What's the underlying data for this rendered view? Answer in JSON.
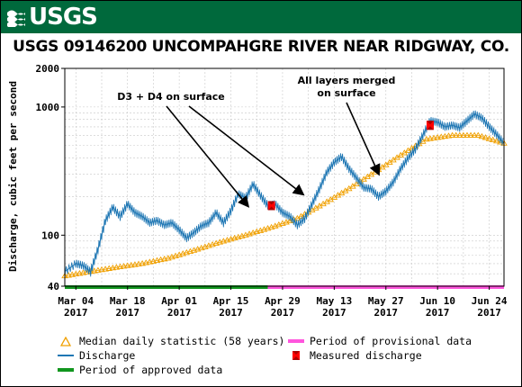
{
  "header": {
    "logo_text": "USGS",
    "brand_color": "#00693c"
  },
  "chart_data": {
    "type": "line",
    "title": "USGS 09146200 UNCOMPAHGRE RIVER NEAR RIDGWAY, CO.",
    "ylabel": "Discharge, cubic feet per second",
    "xlabel": "",
    "yscale": "log",
    "ylim": [
      40,
      2000
    ],
    "xlim": [
      "2017-03-01",
      "2017-06-28"
    ],
    "y_ticks": [
      40,
      100,
      1000,
      2000
    ],
    "x_ticks": [
      {
        "date": "2017-03-04",
        "label1": "Mar 04",
        "label2": "2017"
      },
      {
        "date": "2017-03-18",
        "label1": "Mar 18",
        "label2": "2017"
      },
      {
        "date": "2017-04-01",
        "label1": "Apr 01",
        "label2": "2017"
      },
      {
        "date": "2017-04-15",
        "label1": "Apr 15",
        "label2": "2017"
      },
      {
        "date": "2017-04-29",
        "label1": "Apr 29",
        "label2": "2017"
      },
      {
        "date": "2017-05-13",
        "label1": "May 13",
        "label2": "2017"
      },
      {
        "date": "2017-05-27",
        "label1": "May 27",
        "label2": "2017"
      },
      {
        "date": "2017-06-10",
        "label1": "Jun 10",
        "label2": "2017"
      },
      {
        "date": "2017-06-24",
        "label1": "Jun 24",
        "label2": "2017"
      }
    ],
    "grid": true,
    "series": [
      {
        "name": "Discharge",
        "color": "#1f77b4",
        "x": [
          "2017-03-01",
          "2017-03-04",
          "2017-03-06",
          "2017-03-08",
          "2017-03-10",
          "2017-03-12",
          "2017-03-14",
          "2017-03-16",
          "2017-03-18",
          "2017-03-20",
          "2017-03-22",
          "2017-03-24",
          "2017-03-26",
          "2017-03-28",
          "2017-03-30",
          "2017-04-01",
          "2017-04-03",
          "2017-04-05",
          "2017-04-07",
          "2017-04-09",
          "2017-04-11",
          "2017-04-13",
          "2017-04-15",
          "2017-04-17",
          "2017-04-19",
          "2017-04-21",
          "2017-04-23",
          "2017-04-25",
          "2017-04-27",
          "2017-04-29",
          "2017-05-01",
          "2017-05-03",
          "2017-05-05",
          "2017-05-07",
          "2017-05-09",
          "2017-05-11",
          "2017-05-13",
          "2017-05-15",
          "2017-05-17",
          "2017-05-19",
          "2017-05-21",
          "2017-05-23",
          "2017-05-25",
          "2017-05-27",
          "2017-05-29",
          "2017-05-31",
          "2017-06-02",
          "2017-06-04",
          "2017-06-06",
          "2017-06-08",
          "2017-06-10",
          "2017-06-12",
          "2017-06-14",
          "2017-06-16",
          "2017-06-18",
          "2017-06-20",
          "2017-06-22",
          "2017-06-24",
          "2017-06-26",
          "2017-06-28"
        ],
        "values": [
          52,
          60,
          58,
          52,
          78,
          130,
          165,
          140,
          175,
          150,
          140,
          125,
          130,
          120,
          125,
          110,
          95,
          105,
          118,
          125,
          150,
          125,
          155,
          210,
          195,
          250,
          205,
          170,
          175,
          150,
          140,
          120,
          135,
          175,
          230,
          310,
          370,
          410,
          330,
          280,
          235,
          230,
          200,
          220,
          260,
          330,
          400,
          470,
          600,
          780,
          760,
          700,
          720,
          690,
          780,
          880,
          820,
          700,
          610,
          520
        ]
      },
      {
        "name": "Median daily statistic (58 years)",
        "color": "#f0a000",
        "x": [
          "2017-03-01",
          "2017-03-08",
          "2017-03-15",
          "2017-03-22",
          "2017-03-29",
          "2017-04-05",
          "2017-04-12",
          "2017-04-19",
          "2017-04-26",
          "2017-05-03",
          "2017-05-10",
          "2017-05-17",
          "2017-05-24",
          "2017-05-31",
          "2017-06-07",
          "2017-06-14",
          "2017-06-21",
          "2017-06-28"
        ],
        "values": [
          48,
          52,
          56,
          60,
          66,
          76,
          88,
          100,
          115,
          135,
          175,
          230,
          310,
          420,
          560,
          600,
          600,
          520
        ]
      },
      {
        "name": "Measured discharge",
        "color": "#ff0000",
        "x": [
          "2017-04-26",
          "2017-06-08"
        ],
        "values": [
          170,
          720
        ]
      }
    ],
    "periods": [
      {
        "name": "Period of approved data",
        "color": "#11961e",
        "start": "2017-03-01",
        "end": "2017-04-25"
      },
      {
        "name": "Period of provisional data",
        "color": "#ff55dd",
        "start": "2017-04-25",
        "end": "2017-06-28"
      }
    ],
    "annotations": [
      {
        "text": "D3 + D4 on surface",
        "target_date": "2017-04-20",
        "target_value": 200
      },
      {
        "text": "All layers merged\non surface",
        "target_date": "2017-05-24",
        "target_value": 250
      }
    ]
  },
  "legend": [
    {
      "key": "median",
      "label": "Median daily statistic (58 years)"
    },
    {
      "key": "provisional",
      "label": "Period of provisional data"
    },
    {
      "key": "discharge",
      "label": "Discharge"
    },
    {
      "key": "measured",
      "label": "Measured discharge"
    },
    {
      "key": "approved",
      "label": "Period of approved data"
    }
  ]
}
